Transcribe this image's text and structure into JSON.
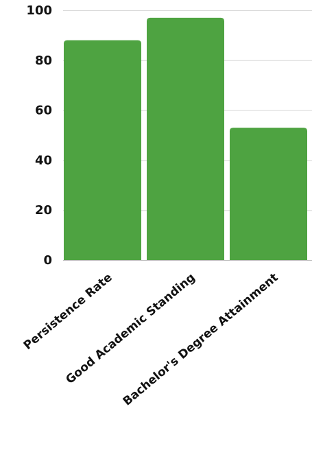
{
  "chart_data": {
    "type": "bar",
    "categories": [
      "Persistence Rate",
      "Good Academic Standing",
      "Bachelor's Degree Attainment"
    ],
    "values": [
      88,
      97,
      53
    ],
    "ylim": [
      0,
      100
    ],
    "yticks": [
      "0",
      "20",
      "40",
      "60",
      "80",
      "100"
    ],
    "title": "",
    "xlabel": "",
    "ylabel": "",
    "grid": true,
    "legend": "none",
    "bar_color": "#4ea341"
  }
}
